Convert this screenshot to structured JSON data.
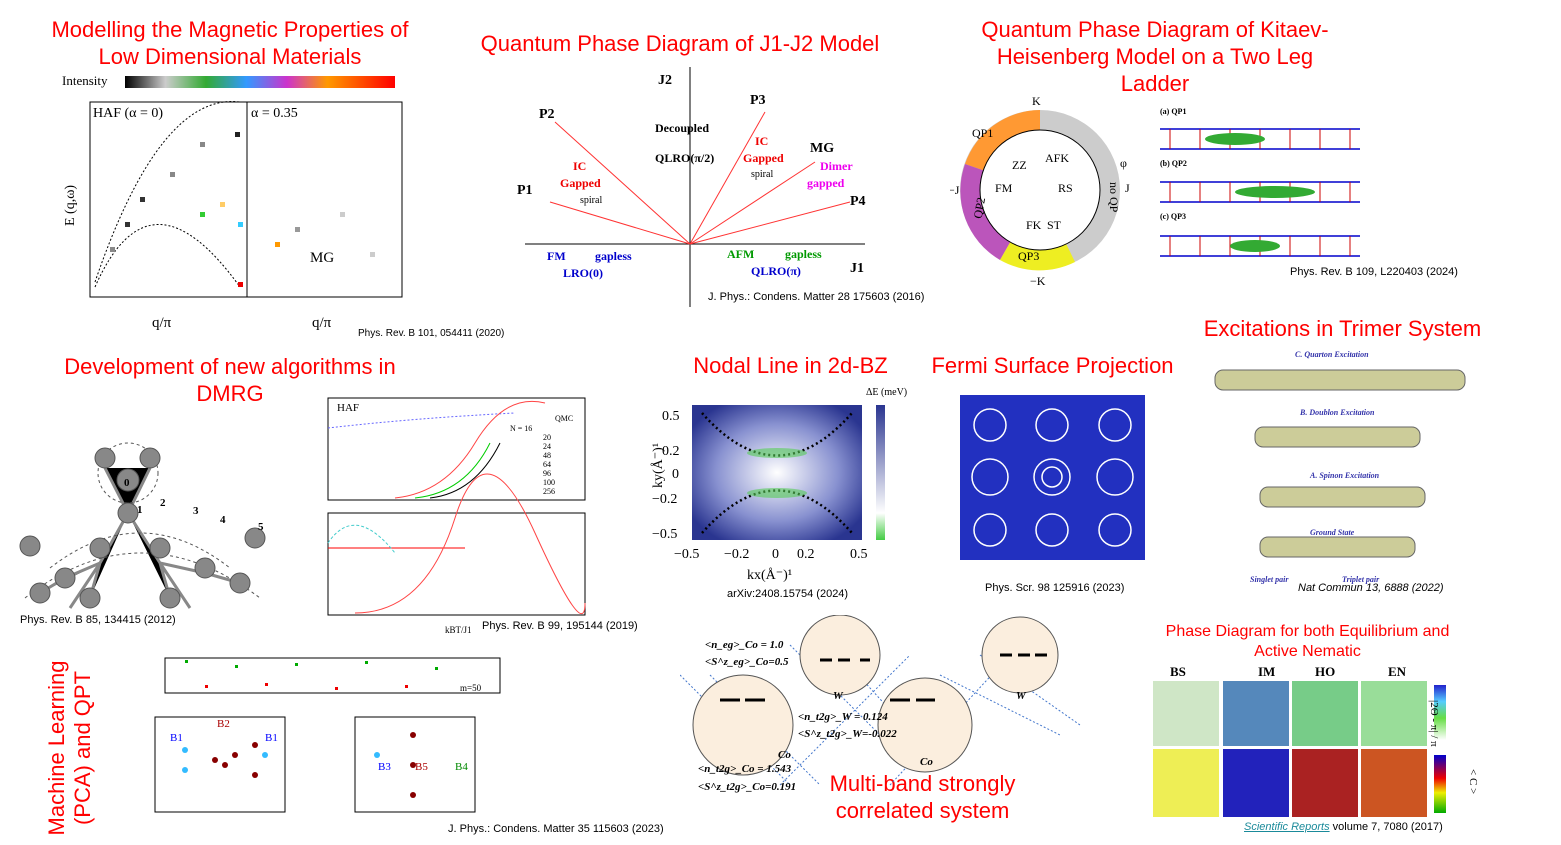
{
  "sections": {
    "magnetic": {
      "title": "Modelling the Magnetic Properties of Low Dimensional Materials",
      "citation": "Phys. Rev. B 101, 054411 (2020)",
      "panel_left": "HAF (α = 0)",
      "panel_right": "α = 0.35",
      "ylabel": "E (q,ω)",
      "xlabel": "q/π",
      "colorbar": "Intensity",
      "mg": "MG"
    },
    "j1j2": {
      "title": "Quantum Phase Diagram of J1-J2 Model",
      "citation": "J. Phys.: Condens. Matter 28 175603 (2016)",
      "labels": {
        "p1": "P1",
        "p2": "P2",
        "p3": "P3",
        "p4": "P4",
        "mg": "MG",
        "j1": "J1",
        "j2": "J2",
        "fm": "FM",
        "gapless": "gapless",
        "lro": "LRO(0)",
        "ic": "IC",
        "gapped": "Gapped",
        "spiral": "spiral",
        "decoupled": "Decoupled",
        "qlro": "QLRO(π/2)",
        "afm": "AFM",
        "qlro_pi": "QLRO(π)",
        "dimer": "Dimer",
        "gapped2": "gapped"
      }
    },
    "kitaev": {
      "title": "Quantum Phase Diagram of Kitaev-Heisenberg Model on a Two Leg Ladder",
      "citation": "Phys. Rev. B 109, L220403 (2024)",
      "regions": [
        "QP1",
        "QP2",
        "QP3",
        "no QP",
        "ZZ",
        "AFK",
        "FM",
        "RS",
        "FK",
        "ST"
      ],
      "axes": [
        "K",
        "−K",
        "−J",
        "J",
        "φ"
      ],
      "ladder_labels": [
        "(a) QP1",
        "(b) QP2",
        "(c) QP3"
      ]
    },
    "trimer": {
      "title": "Excitations in Trimer System",
      "citation": "Nat Commun 13, 6888 (2022)",
      "rows": [
        "C. Quarton Excitation",
        "B. Doublon Excitation",
        "A. Spinon Excitation",
        "Ground State"
      ],
      "legend": [
        "Singlet pair",
        "Triplet pair"
      ]
    },
    "dmrg": {
      "title": "Development of new algorithms in DMRG",
      "citation_tree": "Phys. Rev. B 85, 134415 (2012)",
      "citation_plot": "Phys. Rev. B 99, 195144 (2019)",
      "plot_label": "HAF",
      "qmc": "QMC",
      "legend": [
        "N = 16",
        "20",
        "24",
        "48",
        "64",
        "96",
        "100",
        "256"
      ],
      "xlabel": "kBT/J1"
    },
    "nodal": {
      "title": "Nodal Line in 2d-BZ",
      "citation": "arXiv:2408.15754 (2024)",
      "xlabel": "kx(Å⁻)¹",
      "ylabel": "ky(Å⁻)¹",
      "cbar": "ΔE (meV)",
      "yticks": [
        "0.5",
        "0.2",
        "0",
        "−0.2",
        "−0.5"
      ],
      "xticks": [
        "−0.5",
        "−0.2",
        "0",
        "0.2",
        "0.5"
      ]
    },
    "fermi": {
      "title": "Fermi Surface Projection",
      "citation": "Phys. Scr. 98 125916 (2023)"
    },
    "ml": {
      "title": "Machine Learning (PCA) and QPT",
      "citation": "J. Phys.: Condens. Matter 35 115603 (2023)",
      "labels": [
        "B1",
        "B2",
        "B1",
        "B3",
        "B5",
        "B4",
        "m=50"
      ]
    },
    "multiband": {
      "title": "Multi-band strongly correlated system",
      "annotations": [
        "<n_eg>_Co = 1.0",
        "<S^z_eg>_Co=0.5",
        "<n_t2g>_W = 0.124",
        "<S^z_t2g>_W=-0.022",
        "<n_t2g>_Co = 1.543",
        "<S^z_t2g>_Co=0.191"
      ],
      "sites": [
        "Co",
        "W",
        "Co",
        "W"
      ]
    },
    "nematic": {
      "title": "Phase Diagram for both Equilibrium and Active Nematic",
      "columns": [
        "BS",
        "IM",
        "HO",
        "EN"
      ],
      "journal": "Scientific Reports",
      "citation": "volume 7, 7080 (2017)",
      "cbar1": "|2Θ - π| / π",
      "cbar2": "< C >"
    }
  }
}
